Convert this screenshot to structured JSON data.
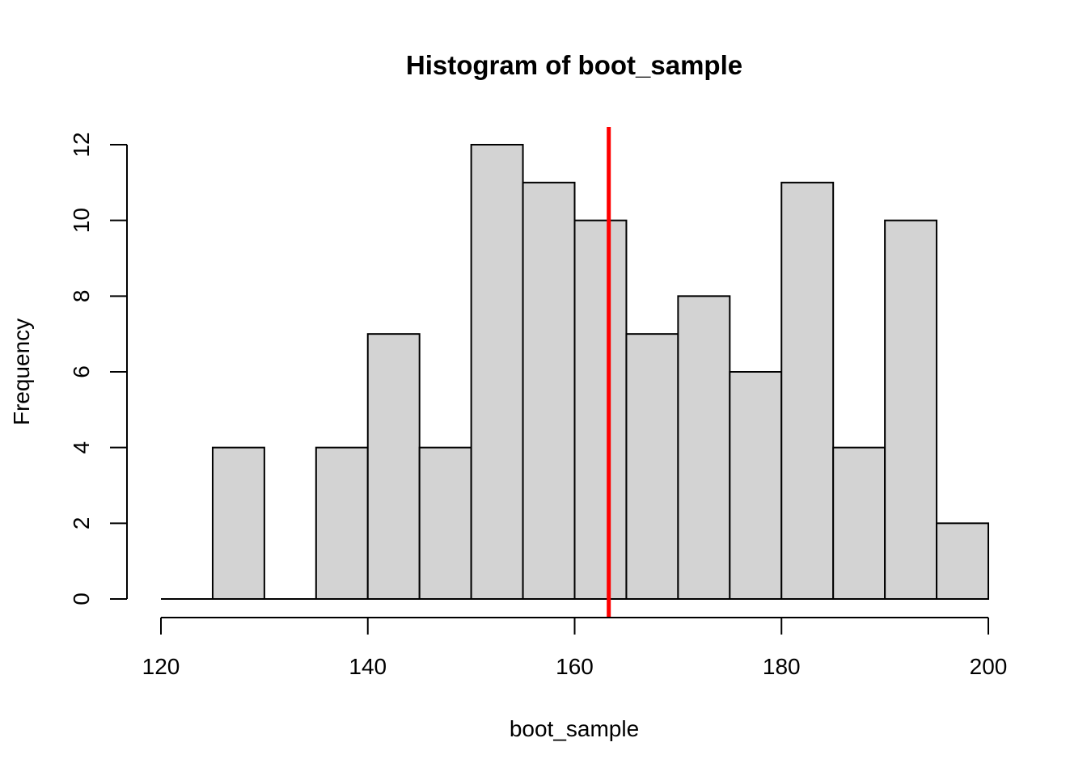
{
  "chart_data": {
    "type": "bar",
    "title": "Histogram of boot_sample",
    "xlabel": "boot_sample",
    "ylabel": "Frequency",
    "bins": [
      {
        "start": 120,
        "end": 125,
        "count": 0
      },
      {
        "start": 125,
        "end": 130,
        "count": 4
      },
      {
        "start": 130,
        "end": 135,
        "count": 0
      },
      {
        "start": 135,
        "end": 140,
        "count": 4
      },
      {
        "start": 140,
        "end": 145,
        "count": 7
      },
      {
        "start": 145,
        "end": 150,
        "count": 4
      },
      {
        "start": 150,
        "end": 155,
        "count": 12
      },
      {
        "start": 155,
        "end": 160,
        "count": 11
      },
      {
        "start": 160,
        "end": 165,
        "count": 10
      },
      {
        "start": 165,
        "end": 170,
        "count": 7
      },
      {
        "start": 170,
        "end": 175,
        "count": 8
      },
      {
        "start": 175,
        "end": 180,
        "count": 6
      },
      {
        "start": 180,
        "end": 185,
        "count": 11
      },
      {
        "start": 185,
        "end": 190,
        "count": 4
      },
      {
        "start": 190,
        "end": 195,
        "count": 10
      },
      {
        "start": 195,
        "end": 200,
        "count": 2
      }
    ],
    "xlim": [
      120,
      200
    ],
    "ylim": [
      0,
      12
    ],
    "xticks": [
      120,
      140,
      160,
      180,
      200
    ],
    "yticks": [
      0,
      2,
      4,
      6,
      8,
      10,
      12
    ],
    "vline": {
      "x": 163.3,
      "color": "#ff0000"
    },
    "bar_color": "#d3d3d3",
    "grid": false,
    "legend": "none"
  }
}
